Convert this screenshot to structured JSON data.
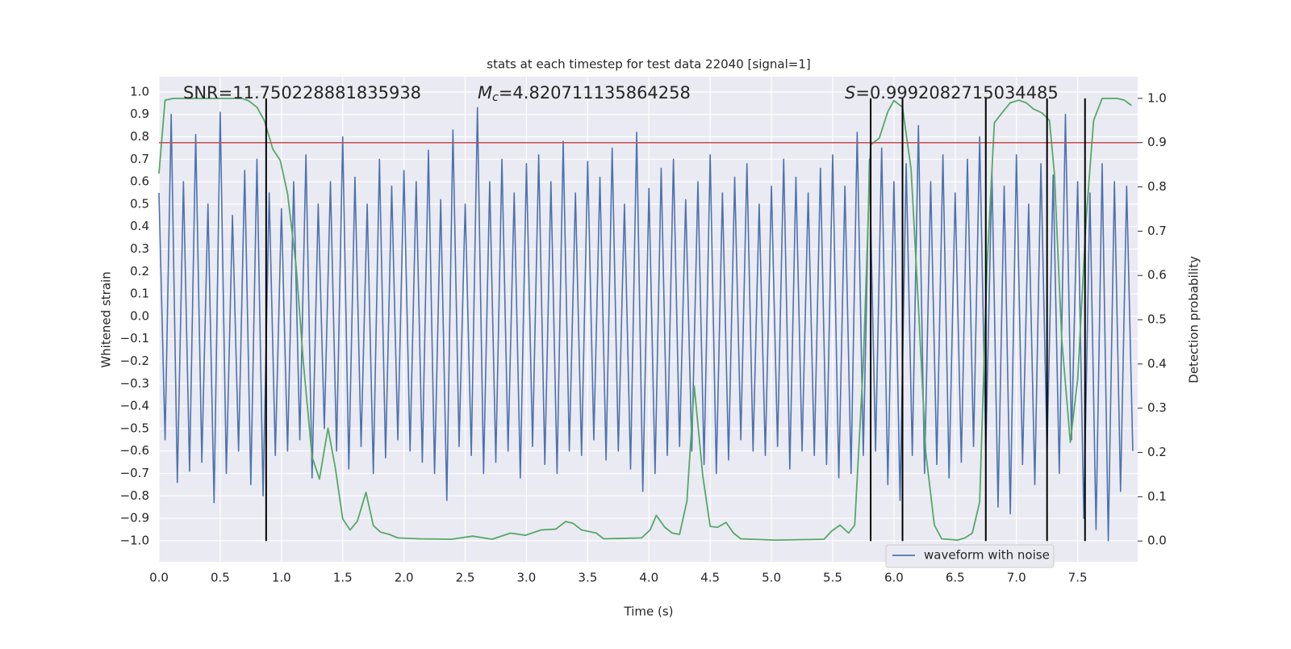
{
  "chart_data": {
    "type": "line",
    "title": "stats at each timestep for test data 22040 [signal=1]",
    "xlabel": "Time (s)",
    "ylabel": "Whitened strain",
    "y2label": "Detection probability",
    "annotations": [
      {
        "text": "SNR=11.750228881835938"
      },
      {
        "symbol": "M",
        "subscript": "c",
        "text": "=4.820711135864258"
      },
      {
        "symbol": "S",
        "text": "=0.9992082715034485"
      }
    ],
    "xlim": [
      0,
      7.99
    ],
    "xticks": [
      {
        "value": 0,
        "label": "0.0"
      },
      0.5,
      {
        "value": 1,
        "label": "1.0"
      },
      1.5,
      {
        "value": 2,
        "label": "2.0"
      },
      2.5,
      {
        "value": 3,
        "label": "3.0"
      },
      3.5,
      {
        "value": 4,
        "label": "4.0"
      },
      4.5,
      {
        "value": 5,
        "label": "5.0"
      },
      5.5,
      {
        "value": 6,
        "label": "6.0"
      },
      6.5,
      {
        "value": 7,
        "label": "7.0"
      },
      7.5
    ],
    "ylim": [
      -1.094,
      1.068
    ],
    "yticks": [
      {
        "value": -1,
        "label": "−1.0"
      },
      {
        "value": -0.9,
        "label": "−0.9"
      },
      {
        "value": -0.8,
        "label": "−0.8"
      },
      {
        "value": -0.7,
        "label": "−0.7"
      },
      {
        "value": -0.6,
        "label": "−0.6"
      },
      {
        "value": -0.5,
        "label": "−0.5"
      },
      {
        "value": -0.4,
        "label": "−0.4"
      },
      {
        "value": -0.3,
        "label": "−0.3"
      },
      {
        "value": -0.2,
        "label": "−0.2"
      },
      {
        "value": -0.1,
        "label": "−0.1"
      },
      {
        "value": 0,
        "label": "0.0"
      },
      0.1,
      0.2,
      0.3,
      0.4,
      0.5,
      0.6,
      0.7,
      0.8,
      0.9,
      {
        "value": 1,
        "label": "1.0"
      }
    ],
    "y2lim": [
      -0.047,
      1.049
    ],
    "y2ticks": [
      {
        "value": 0,
        "label": "0.0"
      },
      0.1,
      0.2,
      0.3,
      0.4,
      0.5,
      0.6,
      0.7,
      0.8,
      0.9,
      {
        "value": 1,
        "label": "1.0"
      }
    ],
    "grid": true,
    "legend": "lower right",
    "series": [
      {
        "name": "waveform with noise",
        "color": "#4c72b0",
        "x": [
          0,
          0.05,
          0.1,
          0.15,
          0.2,
          0.25,
          0.3,
          0.35,
          0.4,
          0.45,
          0.5,
          0.55,
          0.6,
          0.65,
          0.7,
          0.75,
          0.8,
          0.85,
          0.9,
          0.95,
          1,
          1.05,
          1.1,
          1.15,
          1.2,
          1.25,
          1.3,
          1.35,
          1.4,
          1.45,
          1.5,
          1.55,
          1.6,
          1.65,
          1.7,
          1.75,
          1.8,
          1.85,
          1.9,
          1.95,
          2,
          2.05,
          2.1,
          2.15,
          2.2,
          2.25,
          2.3,
          2.35,
          2.4,
          2.45,
          2.5,
          2.55,
          2.6,
          2.65,
          2.7,
          2.75,
          2.8,
          2.85,
          2.9,
          2.95,
          3,
          3.05,
          3.1,
          3.15,
          3.2,
          3.25,
          3.3,
          3.35,
          3.4,
          3.45,
          3.5,
          3.55,
          3.6,
          3.65,
          3.7,
          3.75,
          3.8,
          3.85,
          3.9,
          3.95,
          4,
          4.05,
          4.1,
          4.15,
          4.2,
          4.25,
          4.3,
          4.35,
          4.4,
          4.45,
          4.5,
          4.55,
          4.6,
          4.65,
          4.7,
          4.75,
          4.8,
          4.85,
          4.9,
          4.95,
          5,
          5.05,
          5.1,
          5.15,
          5.2,
          5.25,
          5.3,
          5.35,
          5.4,
          5.45,
          5.5,
          5.55,
          5.6,
          5.65,
          5.7,
          5.75,
          5.8,
          5.85,
          5.9,
          5.95,
          6,
          6.05,
          6.1,
          6.15,
          6.2,
          6.25,
          6.3,
          6.35,
          6.4,
          6.45,
          6.5,
          6.55,
          6.6,
          6.65,
          6.7,
          6.75,
          6.8,
          6.85,
          6.9,
          6.95,
          7,
          7.05,
          7.1,
          7.15,
          7.2,
          7.25,
          7.3,
          7.35,
          7.4,
          7.45,
          7.5,
          7.55,
          7.6,
          7.65,
          7.7,
          7.75,
          7.8,
          7.85,
          7.9,
          7.95
        ],
        "values": [
          0.55,
          -0.55,
          0.9,
          -0.74,
          0.6,
          -0.69,
          0.81,
          -0.65,
          0.5,
          -0.83,
          0.91,
          -0.7,
          0.45,
          -0.6,
          0.65,
          -0.75,
          0.7,
          -0.8,
          0.55,
          -0.62,
          0.48,
          -0.6,
          0.6,
          -0.55,
          0.72,
          -0.72,
          0.5,
          -0.5,
          0.6,
          -0.6,
          0.8,
          -0.68,
          0.62,
          -0.58,
          0.5,
          -0.7,
          0.7,
          -0.63,
          0.58,
          -0.55,
          0.65,
          -0.6,
          0.6,
          -0.65,
          0.74,
          -0.7,
          0.52,
          -0.82,
          0.83,
          -0.58,
          0.5,
          -0.62,
          0.93,
          -0.7,
          0.6,
          -0.65,
          0.7,
          -0.6,
          0.55,
          -0.72,
          0.68,
          -0.58,
          0.72,
          -0.66,
          0.6,
          -0.7,
          0.78,
          -0.6,
          0.55,
          -0.62,
          0.69,
          -0.55,
          0.62,
          -0.64,
          0.75,
          -0.6,
          0.5,
          -0.68,
          0.82,
          -0.78,
          0.57,
          -0.7,
          0.66,
          -0.62,
          0.7,
          -0.58,
          0.52,
          -0.6,
          0.6,
          -0.66,
          0.72,
          -0.7,
          0.55,
          -0.64,
          0.62,
          -0.55,
          0.68,
          -0.6,
          0.5,
          -0.62,
          0.58,
          -0.58,
          0.7,
          -0.68,
          0.62,
          -0.6,
          0.55,
          -0.62,
          0.66,
          -0.66,
          0.72,
          -0.72,
          0.58,
          -0.7,
          0.82,
          -0.62,
          0.7,
          -0.6,
          0.75,
          -0.75,
          0.6,
          -0.82,
          0.68,
          -0.62,
          0.85,
          -0.7,
          0.6,
          -0.66,
          0.72,
          -0.72,
          0.55,
          -0.65,
          0.7,
          -0.58,
          0.8,
          -0.6,
          0.65,
          -0.85,
          0.58,
          -0.88,
          0.72,
          -0.66,
          0.5,
          -0.75,
          0.68,
          -0.6,
          0.63,
          -0.7,
          0.9,
          -0.55,
          0.6,
          -0.9,
          0.55,
          -0.95,
          0.68,
          -1.0,
          0.6,
          -0.78,
          0.58,
          -0.6
        ]
      },
      {
        "color": "#55a868",
        "axis": "y2",
        "x": [
          0,
          0.05,
          0.12,
          0.68,
          0.73,
          0.8,
          0.86,
          0.93,
          0.99,
          1.05,
          1.12,
          1.18,
          1.25,
          1.31,
          1.38,
          1.44,
          1.5,
          1.56,
          1.62,
          1.69,
          1.75,
          1.81,
          1.88,
          1.95,
          2.13,
          2.39,
          2.56,
          2.72,
          2.87,
          2.99,
          3.12,
          3.24,
          3.32,
          3.38,
          3.45,
          3.57,
          3.63,
          3.94,
          4.01,
          4.06,
          4.13,
          4.19,
          4.25,
          4.31,
          4.37,
          4.44,
          4.5,
          4.56,
          4.63,
          4.69,
          4.75,
          5.03,
          5.43,
          5.49,
          5.56,
          5.63,
          5.68,
          5.75,
          5.81,
          5.88,
          5.95,
          6.0,
          6.07,
          6.14,
          6.2,
          6.26,
          6.33,
          6.39,
          6.52,
          6.58,
          6.64,
          6.7,
          6.76,
          6.82,
          6.89,
          6.95,
          7.02,
          7.08,
          7.14,
          7.21,
          7.27,
          7.31,
          7.37,
          7.44,
          7.5,
          7.57,
          7.63,
          7.7,
          7.82,
          7.88,
          7.94
        ],
        "values": [
          0.83,
          0.996,
          1.0,
          1.0,
          0.995,
          0.98,
          0.95,
          0.885,
          0.86,
          0.785,
          0.62,
          0.4,
          0.19,
          0.14,
          0.255,
          0.165,
          0.05,
          0.025,
          0.045,
          0.11,
          0.035,
          0.02,
          0.015,
          0.007,
          0.005,
          0.004,
          0.011,
          0.004,
          0.018,
          0.013,
          0.025,
          0.027,
          0.044,
          0.04,
          0.025,
          0.018,
          0.005,
          0.007,
          0.025,
          0.058,
          0.031,
          0.018,
          0.015,
          0.09,
          0.35,
          0.146,
          0.033,
          0.031,
          0.042,
          0.018,
          0.005,
          0.002,
          0.004,
          0.022,
          0.036,
          0.018,
          0.036,
          0.4,
          0.895,
          0.91,
          0.97,
          0.995,
          0.98,
          0.84,
          0.53,
          0.2,
          0.036,
          0.005,
          0.002,
          0.007,
          0.018,
          0.088,
          0.62,
          0.945,
          0.97,
          0.99,
          0.996,
          0.99,
          0.976,
          0.967,
          0.95,
          0.83,
          0.456,
          0.223,
          0.365,
          0.73,
          0.95,
          1.0,
          1.0,
          0.996,
          0.984
        ]
      }
    ],
    "threshold": {
      "axis": "y2",
      "value": 0.9,
      "color": "#c44e52"
    },
    "vlines": {
      "axis": "y2",
      "x": [
        0.875,
        5.81,
        6.07,
        6.75,
        7.25,
        7.56
      ],
      "ymin": 0,
      "ymax": 1,
      "color": "#000000"
    }
  }
}
